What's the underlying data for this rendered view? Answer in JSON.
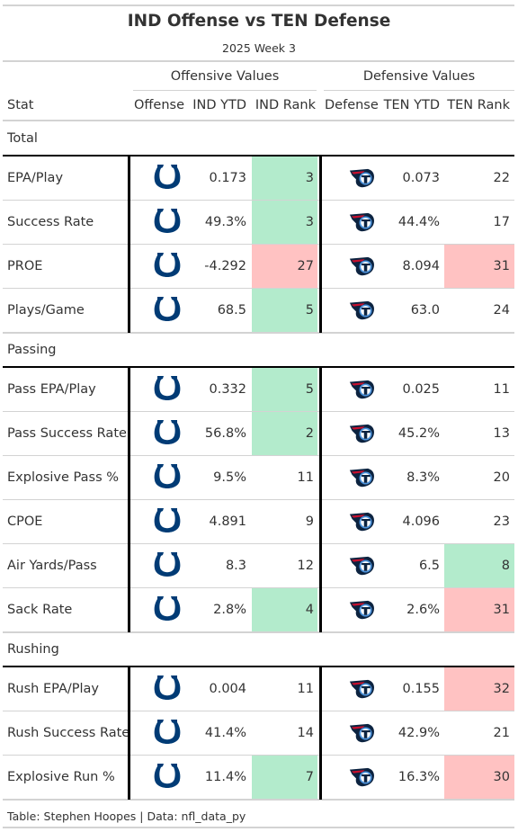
{
  "title": "IND Offense vs TEN Defense",
  "subtitle": "2025 Week 3",
  "spanners": {
    "offense": "Offensive Values",
    "defense": "Defensive Values"
  },
  "columns": {
    "stat": "Stat",
    "offense": "Offense",
    "off_ytd": "IND YTD",
    "off_rank": "IND Rank",
    "defense": "Defense",
    "def_ytd": "TEN YTD",
    "def_rank": "TEN Rank"
  },
  "colors": {
    "good_rank": "#b3ebcc",
    "bad_rank": "#ffc2c2",
    "colts_blue": "#003b75",
    "titans_navy": "#0c2340",
    "titans_blue": "#4b92db",
    "titans_red": "#c8102e"
  },
  "icons": {
    "offense": "colts-horseshoe-logo-icon",
    "defense": "titans-logo-icon"
  },
  "groups": [
    {
      "label": "Total",
      "rows": [
        {
          "stat": "EPA/Play",
          "off_ytd": "0.173",
          "off_rank": "3",
          "off_tier": "good",
          "def_ytd": "0.073",
          "def_rank": "22",
          "def_tier": "none"
        },
        {
          "stat": "Success Rate",
          "off_ytd": "49.3%",
          "off_rank": "3",
          "off_tier": "good",
          "def_ytd": "44.4%",
          "def_rank": "17",
          "def_tier": "none"
        },
        {
          "stat": "PROE",
          "off_ytd": "-4.292",
          "off_rank": "27",
          "off_tier": "bad",
          "def_ytd": "8.094",
          "def_rank": "31",
          "def_tier": "bad"
        },
        {
          "stat": "Plays/Game",
          "off_ytd": "68.5",
          "off_rank": "5",
          "off_tier": "good",
          "def_ytd": "63.0",
          "def_rank": "24",
          "def_tier": "none"
        }
      ]
    },
    {
      "label": "Passing",
      "rows": [
        {
          "stat": "Pass EPA/Play",
          "off_ytd": "0.332",
          "off_rank": "5",
          "off_tier": "good",
          "def_ytd": "0.025",
          "def_rank": "11",
          "def_tier": "none"
        },
        {
          "stat": "Pass Success Rate",
          "off_ytd": "56.8%",
          "off_rank": "2",
          "off_tier": "good",
          "def_ytd": "45.2%",
          "def_rank": "13",
          "def_tier": "none"
        },
        {
          "stat": "Explosive Pass %",
          "off_ytd": "9.5%",
          "off_rank": "11",
          "off_tier": "none",
          "def_ytd": "8.3%",
          "def_rank": "20",
          "def_tier": "none"
        },
        {
          "stat": "CPOE",
          "off_ytd": "4.891",
          "off_rank": "9",
          "off_tier": "none",
          "def_ytd": "4.096",
          "def_rank": "23",
          "def_tier": "none"
        },
        {
          "stat": "Air Yards/Pass",
          "off_ytd": "8.3",
          "off_rank": "12",
          "off_tier": "none",
          "def_ytd": "6.5",
          "def_rank": "8",
          "def_tier": "good"
        },
        {
          "stat": "Sack Rate",
          "off_ytd": "2.8%",
          "off_rank": "4",
          "off_tier": "good",
          "def_ytd": "2.6%",
          "def_rank": "31",
          "def_tier": "bad"
        }
      ]
    },
    {
      "label": "Rushing",
      "rows": [
        {
          "stat": "Rush EPA/Play",
          "off_ytd": "0.004",
          "off_rank": "11",
          "off_tier": "none",
          "def_ytd": "0.155",
          "def_rank": "32",
          "def_tier": "bad"
        },
        {
          "stat": "Rush Success Rate",
          "off_ytd": "41.4%",
          "off_rank": "14",
          "off_tier": "none",
          "def_ytd": "42.9%",
          "def_rank": "21",
          "def_tier": "none"
        },
        {
          "stat": "Explosive Run %",
          "off_ytd": "11.4%",
          "off_rank": "7",
          "off_tier": "good",
          "def_ytd": "16.3%",
          "def_rank": "30",
          "def_tier": "bad"
        }
      ]
    }
  ],
  "footer": "Table: Stephen Hoopes | Data: nfl_data_py"
}
